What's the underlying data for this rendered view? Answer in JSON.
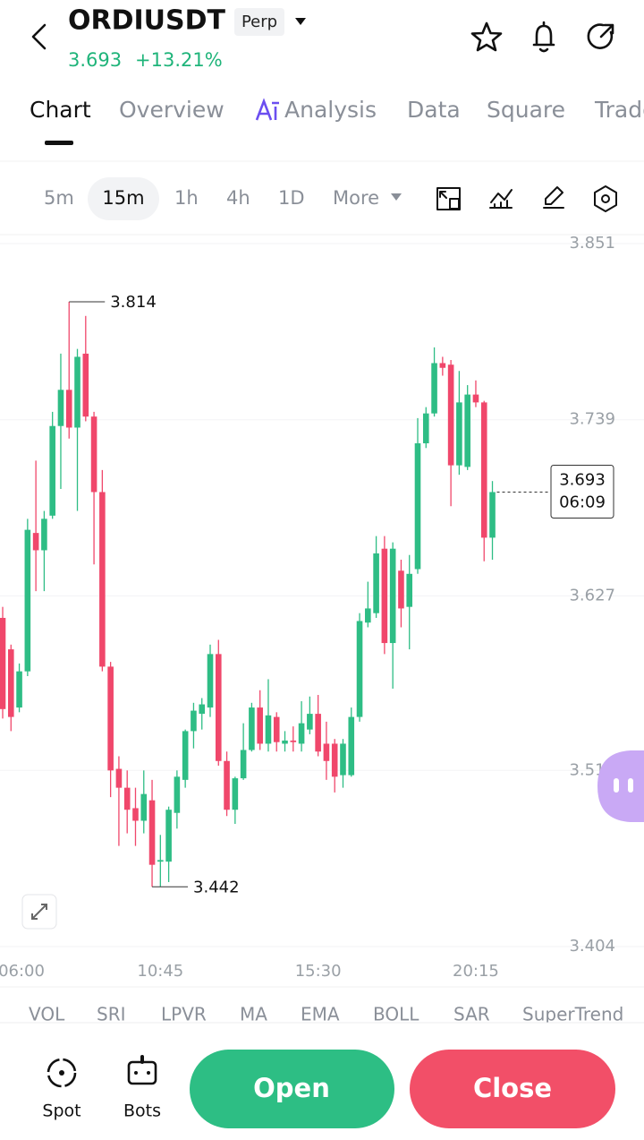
{
  "header": {
    "symbol": "ORDIUSDT",
    "contract": "Perp",
    "price": "3.693",
    "change": "+13.21%"
  },
  "tabs": [
    "Chart",
    "Overview",
    "Analysis",
    "Data",
    "Square",
    "Trade"
  ],
  "intervals": [
    "5m",
    "15m",
    "1h",
    "4h",
    "1D",
    "More"
  ],
  "indicators": [
    "VOL",
    "SRI",
    "LPVR",
    "MA",
    "EMA",
    "BOLL",
    "SAR",
    "SuperTrend"
  ],
  "bottom": {
    "spot": "Spot",
    "bots": "Bots",
    "open": "Open",
    "close": "Close"
  },
  "chart_data": {
    "type": "candlestick",
    "categories": [
      "06:00",
      null,
      null,
      null,
      null,
      null,
      null,
      null,
      null,
      null,
      null,
      null,
      null,
      null,
      null,
      null,
      null,
      null,
      null,
      "10:45",
      null,
      null,
      null,
      null,
      null,
      null,
      null,
      null,
      null,
      null,
      null,
      null,
      null,
      null,
      null,
      null,
      null,
      null,
      "15:30",
      null,
      null,
      null,
      null,
      null,
      null,
      null,
      null,
      null,
      null,
      null,
      null,
      null,
      null,
      null,
      null,
      null,
      null,
      "20:15",
      null,
      null
    ],
    "open": [
      3.613,
      3.593,
      3.556,
      3.579,
      3.667,
      3.656,
      3.678,
      3.735,
      3.758,
      3.734,
      3.781,
      3.741,
      3.693,
      3.582,
      3.517,
      3.505,
      3.492,
      3.484,
      3.497,
      3.458,
      3.458,
      3.489,
      3.51,
      3.541,
      3.552,
      3.556,
      3.59,
      3.522,
      3.491,
      3.511,
      3.529,
      3.556,
      3.533,
      3.55,
      3.533,
      3.535,
      3.533,
      3.542,
      3.552,
      3.533,
      3.533,
      3.513,
      3.513,
      3.55,
      3.61,
      3.616,
      3.657,
      3.597,
      3.643,
      3.62,
      3.644,
      3.724,
      3.743,
      3.775,
      3.774,
      3.71,
      3.709,
      3.755,
      3.75,
      3.664
    ],
    "high": [
      3.62,
      3.596,
      3.584,
      3.676,
      3.713,
      3.681,
      3.744,
      3.781,
      3.814,
      3.784,
      3.805,
      3.744,
      3.707,
      3.585,
      3.525,
      3.516,
      3.505,
      3.516,
      3.51,
      3.475,
      3.493,
      3.516,
      3.542,
      3.559,
      3.562,
      3.596,
      3.599,
      3.528,
      3.512,
      3.546,
      3.559,
      3.567,
      3.574,
      3.553,
      3.541,
      3.544,
      3.56,
      3.563,
      3.564,
      3.547,
      3.536,
      3.536,
      3.556,
      3.616,
      3.636,
      3.665,
      3.665,
      3.661,
      3.65,
      3.653,
      3.74,
      3.747,
      3.785,
      3.779,
      3.777,
      3.77,
      3.761,
      3.764,
      3.751,
      3.7
    ],
    "low": [
      3.549,
      3.541,
      3.553,
      3.576,
      3.63,
      3.63,
      3.676,
      3.695,
      3.727,
      3.681,
      3.738,
      3.647,
      3.579,
      3.499,
      3.468,
      3.476,
      3.468,
      3.476,
      3.442,
      3.442,
      3.445,
      3.479,
      3.505,
      3.53,
      3.542,
      3.55,
      3.519,
      3.487,
      3.482,
      3.51,
      3.528,
      3.529,
      3.528,
      3.528,
      3.528,
      3.528,
      3.528,
      3.539,
      3.525,
      3.51,
      3.502,
      3.505,
      3.512,
      3.547,
      3.607,
      3.613,
      3.59,
      3.568,
      3.607,
      3.593,
      3.641,
      3.721,
      3.741,
      3.767,
      3.684,
      3.704,
      3.707,
      3.747,
      3.649,
      3.65
    ],
    "close": [
      3.555,
      3.55,
      3.579,
      3.669,
      3.656,
      3.676,
      3.735,
      3.758,
      3.734,
      3.779,
      3.741,
      3.693,
      3.582,
      3.516,
      3.505,
      3.491,
      3.484,
      3.501,
      3.456,
      3.459,
      3.491,
      3.512,
      3.541,
      3.554,
      3.558,
      3.59,
      3.522,
      3.491,
      3.511,
      3.529,
      3.556,
      3.533,
      3.551,
      3.534,
      3.535,
      3.534,
      3.546,
      3.552,
      3.528,
      3.522,
      3.512,
      3.533,
      3.55,
      3.611,
      3.619,
      3.654,
      3.597,
      3.657,
      3.619,
      3.641,
      3.724,
      3.743,
      3.775,
      3.772,
      3.71,
      3.75,
      3.755,
      3.75,
      3.664,
      3.693
    ],
    "countdown": "06:09",
    "ylim": [
      3.404,
      3.851
    ],
    "yticks": [
      3.404,
      3.516,
      3.627,
      3.739,
      3.851
    ],
    "up_color": "#2ebd85",
    "down_color": "#f0476b",
    "grid": true
  }
}
